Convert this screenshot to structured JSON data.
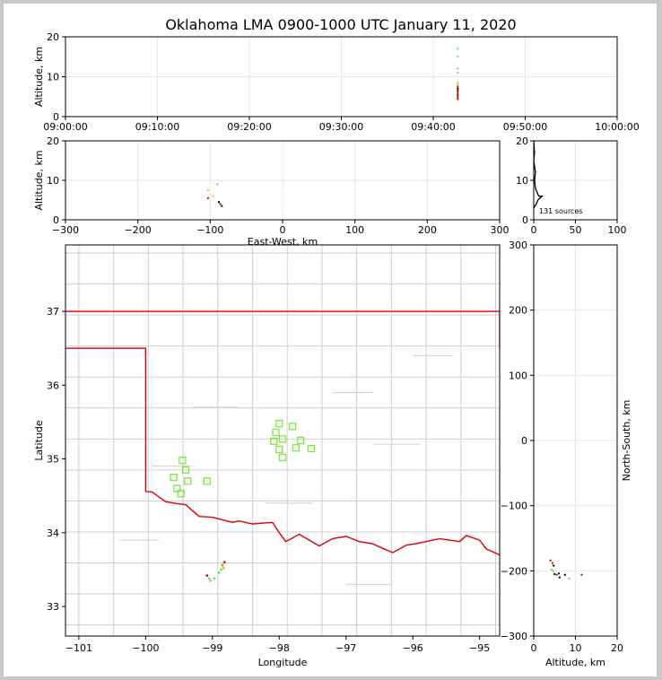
{
  "chart_data": [
    {
      "panel": "time-altitude",
      "type": "scatter",
      "title": "Oklahoma LMA 0900-1000 UTC January 11, 2020",
      "ylabel": "Altitude, km",
      "xlim": [
        "09:00:00",
        "10:00:00"
      ],
      "ylim": [
        0,
        20
      ],
      "xticks": [
        "09:00:00",
        "09:10:00",
        "09:20:00",
        "09:30:00",
        "09:40:00",
        "09:50:00",
        "10:00:00"
      ],
      "yticks": [
        "0",
        "10",
        "20"
      ],
      "grid": true,
      "points": [
        {
          "t": "09:42:40",
          "alt": 17.0,
          "color": "#66dd66"
        },
        {
          "t": "09:42:40",
          "alt": 15.0,
          "color": "#66dd66"
        },
        {
          "t": "09:42:40",
          "alt": 12.0,
          "color": "#66dd66"
        },
        {
          "t": "09:42:40",
          "alt": 11.0,
          "color": "#66dd66"
        },
        {
          "t": "09:42:40",
          "alt": 8.5,
          "color": "#ffcc00"
        },
        {
          "t": "09:42:40",
          "alt": 8.0,
          "color": "#66dd66"
        },
        {
          "t": "09:42:40",
          "alt": 7.5,
          "color": "#dd0000"
        },
        {
          "t": "09:42:40",
          "alt": 7.0,
          "color": "#000000"
        },
        {
          "t": "09:42:40",
          "alt": 6.5,
          "color": "#aa0000"
        },
        {
          "t": "09:42:40",
          "alt": 6.0,
          "color": "#dd0000"
        },
        {
          "t": "09:42:40",
          "alt": 5.5,
          "color": "#880000"
        },
        {
          "t": "09:42:40",
          "alt": 5.0,
          "color": "#aa0000"
        },
        {
          "t": "09:42:40",
          "alt": 4.5,
          "color": "#cc0000"
        },
        {
          "t": "09:42:40",
          "alt": 4.0,
          "color": "#ffcc00"
        }
      ]
    },
    {
      "panel": "east-west-altitude",
      "type": "scatter",
      "xlabel": "East-West, km",
      "ylabel": "Altitude, km",
      "xlim": [
        -300,
        300
      ],
      "ylim": [
        0,
        20
      ],
      "xticks": [
        "−300",
        "−200",
        "−100",
        "0",
        "100",
        "200",
        "300"
      ],
      "yticks": [
        "0",
        "10",
        "20"
      ],
      "grid": true,
      "points": [
        {
          "x": -103,
          "alt": 7.5,
          "color": "#ffcc00"
        },
        {
          "x": -103,
          "alt": 5.5,
          "color": "#dd0000"
        },
        {
          "x": -96,
          "alt": 6.0,
          "color": "#ffcc00"
        },
        {
          "x": -90,
          "alt": 9.0,
          "color": "#66dd66"
        },
        {
          "x": -88,
          "alt": 4.5,
          "color": "#000000"
        },
        {
          "x": -86,
          "alt": 4.0,
          "color": "#aa0000"
        },
        {
          "x": -84,
          "alt": 3.5,
          "color": "#000000"
        }
      ]
    },
    {
      "panel": "altitude-histogram",
      "type": "line",
      "xlim": [
        0,
        100
      ],
      "ylim": [
        0,
        20
      ],
      "xticks": [
        "0",
        "50",
        "100"
      ],
      "yticks": [
        "0",
        "10",
        "20"
      ],
      "annotation": "131 sources",
      "profile": [
        {
          "count": 0,
          "alt": 20
        },
        {
          "count": 1,
          "alt": 17
        },
        {
          "count": 0,
          "alt": 15
        },
        {
          "count": 2,
          "alt": 12
        },
        {
          "count": 1,
          "alt": 10
        },
        {
          "count": 2,
          "alt": 8
        },
        {
          "count": 4,
          "alt": 7
        },
        {
          "count": 6,
          "alt": 6
        },
        {
          "count": 10,
          "alt": 6
        },
        {
          "count": 5,
          "alt": 5
        },
        {
          "count": 3,
          "alt": 4
        },
        {
          "count": 0,
          "alt": 3
        }
      ]
    },
    {
      "panel": "plan-view",
      "type": "scatter",
      "xlabel": "Longitude",
      "ylabel": "Latitude",
      "xlim": [
        -101.2,
        -94.7
      ],
      "ylim": [
        32.6,
        37.9
      ],
      "xticks": [
        "−101",
        "−100",
        "−99",
        "−98",
        "−97",
        "−96",
        "−95"
      ],
      "yticks": [
        "33",
        "34",
        "35",
        "36",
        "37"
      ],
      "stations": [
        {
          "lon": -98.0,
          "lat": 35.48
        },
        {
          "lon": -98.05,
          "lat": 35.36
        },
        {
          "lon": -98.08,
          "lat": 35.24
        },
        {
          "lon": -97.95,
          "lat": 35.27
        },
        {
          "lon": -98.0,
          "lat": 35.13
        },
        {
          "lon": -97.95,
          "lat": 35.02
        },
        {
          "lon": -97.8,
          "lat": 35.44
        },
        {
          "lon": -97.68,
          "lat": 35.25
        },
        {
          "lon": -97.75,
          "lat": 35.15
        },
        {
          "lon": -97.52,
          "lat": 35.14
        },
        {
          "lon": -99.45,
          "lat": 34.98
        },
        {
          "lon": -99.4,
          "lat": 34.85
        },
        {
          "lon": -99.58,
          "lat": 34.75
        },
        {
          "lon": -99.37,
          "lat": 34.7
        },
        {
          "lon": -99.53,
          "lat": 34.6
        },
        {
          "lon": -99.47,
          "lat": 34.53
        },
        {
          "lon": -99.08,
          "lat": 34.7
        }
      ],
      "sources": [
        {
          "lon": -99.08,
          "lat": 33.42,
          "color": "#dd0000"
        },
        {
          "lon": -99.05,
          "lat": 33.38,
          "color": "#66dd66"
        },
        {
          "lon": -99.03,
          "lat": 33.35,
          "color": "#66dd66"
        },
        {
          "lon": -98.97,
          "lat": 33.38,
          "color": "#66dd66"
        },
        {
          "lon": -98.82,
          "lat": 33.6,
          "color": "#dd0000"
        },
        {
          "lon": -98.85,
          "lat": 33.56,
          "color": "#aa0000"
        },
        {
          "lon": -98.83,
          "lat": 33.52,
          "color": "#66dd66"
        },
        {
          "lon": -98.87,
          "lat": 33.5,
          "color": "#66dd66"
        },
        {
          "lon": -98.9,
          "lat": 33.46,
          "color": "#66dd66"
        },
        {
          "lon": -98.85,
          "lat": 33.55,
          "color": "#ffcc00"
        }
      ]
    },
    {
      "panel": "altitude-north-south",
      "type": "scatter",
      "xlabel": "Altitude, km",
      "ylabel": "North-South, km",
      "xlim": [
        0,
        20
      ],
      "ylim": [
        -300,
        300
      ],
      "xticks": [
        "0",
        "10",
        "20"
      ],
      "yticks": [
        "−300",
        "−200",
        "−100",
        "0",
        "100",
        "200",
        "300"
      ],
      "grid": true,
      "points": [
        {
          "alt": 4.0,
          "y": -184,
          "color": "#dd0000"
        },
        {
          "alt": 4.5,
          "y": -188,
          "color": "#dd0000"
        },
        {
          "alt": 4.8,
          "y": -192,
          "color": "#000000"
        },
        {
          "alt": 4.6,
          "y": -200,
          "color": "#66dd66"
        },
        {
          "alt": 5.0,
          "y": -205,
          "color": "#000000"
        },
        {
          "alt": 5.5,
          "y": -206,
          "color": "#3333cc"
        },
        {
          "alt": 6.0,
          "y": -204,
          "color": "#000000"
        },
        {
          "alt": 6.2,
          "y": -210,
          "color": "#000000"
        },
        {
          "alt": 7.5,
          "y": -206,
          "color": "#000000"
        },
        {
          "alt": 8.5,
          "y": -212,
          "color": "#66dd66"
        },
        {
          "alt": 11.5,
          "y": -206,
          "color": "#3333cc"
        },
        {
          "alt": 4.2,
          "y": -198,
          "color": "#66dd66"
        }
      ]
    }
  ]
}
